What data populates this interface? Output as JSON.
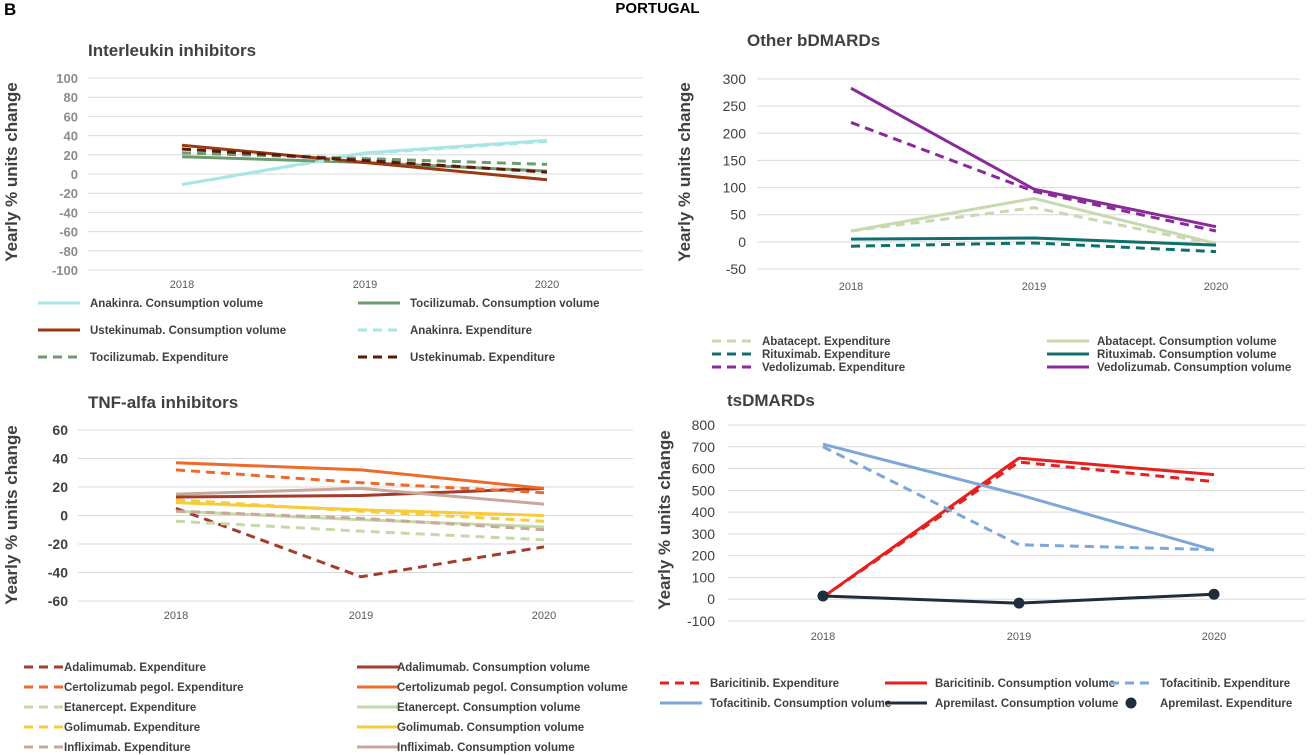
{
  "figure": {
    "panel_letter": "B",
    "title": "PORTUGAL"
  },
  "chart_data": [
    {
      "type": "line",
      "title": "Interleukin inhibitors",
      "ylabel": "Yearly % units change",
      "xlabel": "",
      "categories": [
        "2018",
        "2019",
        "2020"
      ],
      "ylim": [
        -100,
        100
      ],
      "yticks": [
        -100,
        -80,
        -60,
        -40,
        -20,
        0,
        20,
        40,
        60,
        80,
        100
      ],
      "grid": true,
      "series": [
        {
          "name": "Anakinra. Consumption volume",
          "color": "#a8e6e6",
          "dash": false,
          "values": [
            -11,
            22,
            35
          ]
        },
        {
          "name": "Tocilizumab. Consumption volume",
          "color": "#6f9a6f",
          "dash": false,
          "values": [
            18,
            12,
            3
          ]
        },
        {
          "name": "Ustekinumab. Consumption volume",
          "color": "#9b3a12",
          "dash": false,
          "values": [
            30,
            12,
            -6
          ]
        },
        {
          "name": "Anakinra. Expenditure",
          "color": "#a8e6e6",
          "dash": true,
          "values": [
            -11,
            21,
            34
          ]
        },
        {
          "name": "Tocilizumab. Expenditure",
          "color": "#6f9a6f",
          "dash": true,
          "values": [
            22,
            16,
            10
          ]
        },
        {
          "name": "Ustekinumab. Expenditure",
          "color": "#5a1a0a",
          "dash": true,
          "values": [
            26,
            14,
            2
          ]
        }
      ]
    },
    {
      "type": "line",
      "title": "Other bDMARDs",
      "ylabel": "Yearly % units change",
      "xlabel": "",
      "categories": [
        "2018",
        "2019",
        "2020"
      ],
      "ylim": [
        -50,
        300
      ],
      "yticks": [
        -50,
        0,
        50,
        100,
        150,
        200,
        250,
        300
      ],
      "grid": true,
      "series": [
        {
          "name": "Abatacept. Expenditure",
          "color": "#c8d9b0",
          "dash": true,
          "values": [
            20,
            63,
            -5
          ]
        },
        {
          "name": "Abatacept. Consumption volume",
          "color": "#c8d9b0",
          "dash": false,
          "values": [
            20,
            80,
            -3
          ]
        },
        {
          "name": "Rituximab. Expenditure",
          "color": "#0f6f6f",
          "dash": true,
          "values": [
            -8,
            -2,
            -18
          ]
        },
        {
          "name": "Rituximab. Consumption volume",
          "color": "#0f6f6f",
          "dash": false,
          "values": [
            5,
            7,
            -6
          ]
        },
        {
          "name": "Vedolizumab. Expenditure",
          "color": "#8a2a9a",
          "dash": true,
          "values": [
            220,
            93,
            20
          ]
        },
        {
          "name": "Vedolizumab. Consumption volume",
          "color": "#8a2a9a",
          "dash": false,
          "values": [
            283,
            97,
            28
          ]
        }
      ]
    },
    {
      "type": "line",
      "title": "TNF-alfa inhibitors",
      "ylabel": "Yearly % units change",
      "xlabel": "",
      "categories": [
        "2018",
        "2019",
        "2020"
      ],
      "ylim": [
        -60,
        60
      ],
      "yticks": [
        -60,
        -40,
        -20,
        0,
        20,
        40,
        60
      ],
      "grid": true,
      "series": [
        {
          "name": "Adalimumab. Expenditure",
          "color": "#a33c2c",
          "dash": true,
          "values": [
            5,
            -43,
            -22
          ]
        },
        {
          "name": "Adalimumab. Consumption volume",
          "color": "#a33c2c",
          "dash": false,
          "values": [
            13,
            14,
            19
          ]
        },
        {
          "name": "Certolizumab pegol. Expenditure",
          "color": "#ee6a2a",
          "dash": true,
          "values": [
            32,
            23,
            16
          ]
        },
        {
          "name": "Certolizumab pegol. Consumption volume",
          "color": "#ee6a2a",
          "dash": false,
          "values": [
            37,
            32,
            19
          ]
        },
        {
          "name": "Etanercept. Expenditure",
          "color": "#c5d9a8",
          "dash": true,
          "values": [
            -4,
            -11,
            -17
          ]
        },
        {
          "name": "Etanercept. Consumption volume",
          "color": "#c5d9a8",
          "dash": false,
          "values": [
            3,
            -3,
            -8
          ]
        },
        {
          "name": "Golimumab. Expenditure",
          "color": "#f7cc3a",
          "dash": true,
          "values": [
            11,
            3,
            -4
          ]
        },
        {
          "name": "Golimumab. Consumption volume",
          "color": "#f7cc3a",
          "dash": false,
          "values": [
            9,
            4,
            0
          ]
        },
        {
          "name": "Infliximab. Expenditure",
          "color": "#c9a79a",
          "dash": true,
          "values": [
            3,
            -2,
            -10
          ]
        },
        {
          "name": "Infliximab. Consumption volume",
          "color": "#c9a79a",
          "dash": false,
          "values": [
            15,
            19,
            8
          ]
        }
      ]
    },
    {
      "type": "line",
      "title": "tsDMARDs",
      "ylabel": "Yearly % units change",
      "xlabel": "",
      "categories": [
        "2018",
        "2019",
        "2020"
      ],
      "ylim": [
        -100,
        800
      ],
      "yticks": [
        -100,
        0,
        100,
        200,
        300,
        400,
        500,
        600,
        700,
        800
      ],
      "grid": true,
      "series": [
        {
          "name": "Baricitinib. Expenditure",
          "color": "#e61f1f",
          "dash": true,
          "values": [
            10,
            630,
            540
          ]
        },
        {
          "name": "Baricitinib. Consumption volume",
          "color": "#e61f1f",
          "dash": false,
          "values": [
            10,
            648,
            572
          ]
        },
        {
          "name": "Tofacitinib. Expenditure",
          "color": "#7ea6d9",
          "dash": true,
          "values": [
            700,
            250,
            228
          ]
        },
        {
          "name": "Tofacitinib. Consumption volume",
          "color": "#7ea6d9",
          "dash": false,
          "values": [
            712,
            480,
            225
          ]
        },
        {
          "name": "Apremilast. Consumption volume",
          "color": "#1f2d3d",
          "dash": false,
          "values": [
            15,
            -18,
            23
          ]
        },
        {
          "name": "Apremilast. Expenditure",
          "color": "#1f2d3d",
          "dash": false,
          "marker": "circle",
          "values": [
            15,
            -18,
            23
          ]
        }
      ]
    }
  ]
}
